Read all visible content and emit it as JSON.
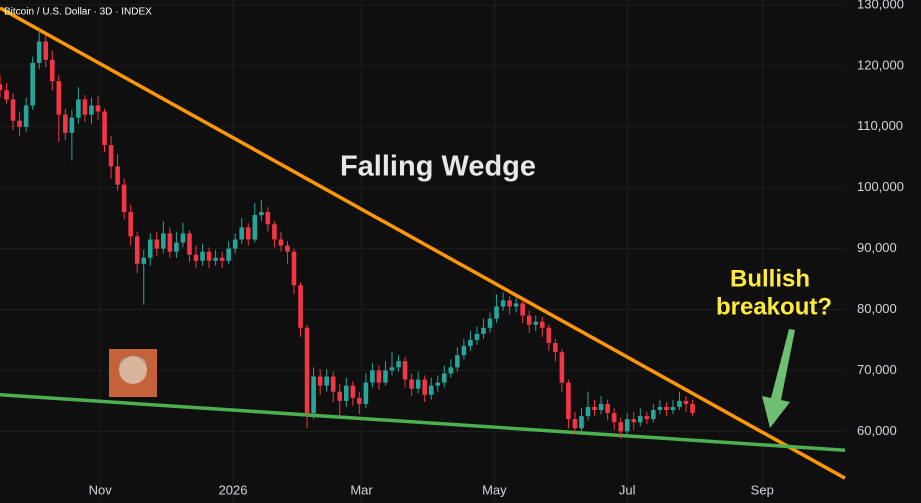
{
  "chart_data": {
    "type": "candlestick",
    "title": "Bitcoin / U.S. Dollar · 3D · INDEX",
    "annotations": {
      "pattern": "Falling Wedge",
      "callout": [
        "Bullish",
        "breakout?"
      ]
    },
    "up_color": "#26a69a",
    "down_color": "#f23645",
    "grid": true,
    "xlim": [
      -46,
      342
    ],
    "xticks": [
      {
        "value": 0,
        "label": "Nov"
      },
      {
        "value": 61,
        "label": "2026"
      },
      {
        "value": 120,
        "label": "Mar"
      },
      {
        "value": 181,
        "label": "May"
      },
      {
        "value": 242,
        "label": "Jul"
      },
      {
        "value": 304,
        "label": "Sep"
      }
    ],
    "ylim": [
      48230,
      130821
    ],
    "yticks": [
      {
        "value": 60000,
        "label": "60,000"
      },
      {
        "value": 70000,
        "label": "70,000"
      },
      {
        "value": 80000,
        "label": "80,000"
      },
      {
        "value": 90000,
        "label": "90,000"
      },
      {
        "value": 100000,
        "label": "100,000"
      },
      {
        "value": 110000,
        "label": "110,000"
      },
      {
        "value": 120000,
        "label": "120,000"
      },
      {
        "value": 130000,
        "label": "130,000"
      }
    ],
    "trendlines": [
      {
        "color": "#ff9800",
        "x": [
          -46,
          342
        ],
        "y": [
          129500,
          52300
        ]
      },
      {
        "color": "#4caf50",
        "x": [
          -46,
          342
        ],
        "y": [
          66000,
          56900
        ]
      }
    ],
    "x": [
      -46,
      -43,
      -40,
      -37,
      -34,
      -31,
      -28,
      -25,
      -22,
      -19,
      -16,
      -13,
      -10,
      -7,
      -4,
      -1,
      2,
      5,
      8,
      11,
      14,
      17,
      20,
      23,
      26,
      29,
      32,
      35,
      38,
      41,
      44,
      47,
      50,
      53,
      56,
      59,
      62,
      65,
      68,
      71,
      74,
      77,
      80,
      83,
      86,
      89,
      92,
      95,
      98,
      101,
      104,
      107,
      110,
      113,
      116,
      119,
      122,
      125,
      128,
      131,
      134,
      137,
      140,
      143,
      146,
      149,
      152,
      155,
      158,
      161,
      164,
      167,
      170,
      173,
      176,
      179,
      182,
      185,
      188,
      191,
      194,
      197,
      200,
      203,
      206,
      209,
      212,
      215,
      218,
      221,
      224,
      227,
      230,
      233,
      236,
      239,
      242,
      245,
      248,
      251,
      254,
      257,
      260,
      263,
      266,
      269,
      272
    ],
    "open": [
      117000,
      116000,
      114500,
      111000,
      110000,
      113500,
      120500,
      124000,
      121000,
      117500,
      112000,
      109000,
      111500,
      114500,
      112000,
      113500,
      112500,
      107000,
      103500,
      100500,
      96000,
      92000,
      87500,
      88500,
      91500,
      90000,
      92500,
      89500,
      91000,
      92500,
      89000,
      88000,
      89500,
      88000,
      88500,
      88000,
      90000,
      91500,
      93500,
      91500,
      95500,
      96000,
      94000,
      91500,
      90500,
      89500,
      84000,
      77000,
      63000,
      69000,
      67500,
      69000,
      66500,
      65000,
      67500,
      65500,
      64500,
      68000,
      70000,
      68000,
      70000,
      70500,
      71500,
      68500,
      67000,
      68500,
      66000,
      67500,
      68000,
      69500,
      70500,
      72500,
      74000,
      75000,
      76000,
      77000,
      78500,
      80500,
      81500,
      80500,
      81000,
      79000,
      77500,
      78000,
      77000,
      74500,
      73000,
      68000,
      62000,
      60500,
      62500,
      64000,
      63500,
      64500,
      63000,
      61500,
      60000,
      62000,
      61500,
      62500,
      62000,
      63500,
      64000,
      63500,
      64000,
      65000,
      64500
    ],
    "high": [
      118500,
      117200,
      115500,
      112500,
      114800,
      121500,
      126000,
      125000,
      122500,
      118500,
      113000,
      112800,
      116500,
      115200,
      114800,
      115000,
      113000,
      108500,
      105500,
      101500,
      97200,
      92800,
      89800,
      92500,
      92800,
      94500,
      93500,
      92800,
      94200,
      93000,
      90500,
      90800,
      90200,
      89800,
      89500,
      91200,
      92500,
      95000,
      94200,
      97500,
      98000,
      96800,
      94500,
      92800,
      91200,
      90000,
      84500,
      77500,
      70500,
      70200,
      70200,
      69800,
      67800,
      68800,
      68200,
      66500,
      69500,
      71200,
      70800,
      71500,
      73000,
      72500,
      72200,
      69500,
      69800,
      69200,
      68800,
      69200,
      70800,
      71800,
      73800,
      75200,
      76500,
      77200,
      78500,
      79500,
      82500,
      82800,
      82200,
      82000,
      81500,
      79800,
      79000,
      78800,
      77500,
      75200,
      73500,
      68500,
      63200,
      63800,
      66500,
      65200,
      65800,
      65200,
      63800,
      62200,
      63000,
      63200,
      63800,
      63200,
      64500,
      65200,
      64800,
      65200,
      66500,
      65800,
      65200
    ],
    "low": [
      114800,
      113800,
      109500,
      108500,
      109200,
      112800,
      119500,
      119800,
      116000,
      107500,
      107800,
      104500,
      110500,
      110800,
      110500,
      111200,
      105800,
      101500,
      99500,
      94800,
      90500,
      86000,
      80800,
      87200,
      88800,
      89200,
      88500,
      88500,
      90200,
      87800,
      86800,
      87200,
      86800,
      87200,
      86800,
      87500,
      89200,
      90800,
      90500,
      91000,
      94500,
      92800,
      90200,
      89500,
      87500,
      82500,
      75500,
      60500,
      62000,
      66000,
      66500,
      64800,
      62500,
      64000,
      64200,
      62800,
      63800,
      67200,
      66800,
      67500,
      69200,
      69800,
      67200,
      65800,
      66200,
      64800,
      65200,
      66500,
      67200,
      68800,
      69800,
      71800,
      73200,
      74200,
      75200,
      76200,
      77800,
      79800,
      79200,
      79500,
      77800,
      76200,
      76500,
      75500,
      73200,
      71500,
      66500,
      60500,
      59500,
      59800,
      61800,
      62500,
      62800,
      61800,
      60200,
      58800,
      59200,
      60200,
      60800,
      61200,
      61500,
      62800,
      62500,
      62800,
      63500,
      63200,
      62500
    ],
    "close": [
      116000,
      114500,
      111000,
      110000,
      113500,
      120500,
      124000,
      121000,
      117500,
      112000,
      109000,
      111500,
      114500,
      112000,
      113500,
      112500,
      107000,
      103500,
      100500,
      96000,
      92000,
      87500,
      88500,
      91500,
      90000,
      92500,
      89500,
      91000,
      92500,
      89000,
      88000,
      89500,
      88000,
      88500,
      88000,
      90000,
      91500,
      93500,
      91500,
      95500,
      96000,
      94000,
      91500,
      90500,
      89500,
      84000,
      77000,
      63000,
      69000,
      67500,
      69000,
      66500,
      65000,
      67500,
      65500,
      64500,
      68000,
      70000,
      68000,
      70000,
      70500,
      71500,
      68500,
      67000,
      68500,
      66000,
      67500,
      68000,
      69500,
      70500,
      72500,
      74000,
      75000,
      76000,
      77000,
      78500,
      80500,
      81500,
      80500,
      81000,
      79000,
      77500,
      78000,
      77000,
      74500,
      73000,
      68000,
      62000,
      60500,
      62500,
      64000,
      63500,
      64500,
      63000,
      61500,
      60000,
      62000,
      61500,
      62500,
      62000,
      63500,
      64000,
      63500,
      64000,
      65000,
      64500,
      63000
    ]
  }
}
